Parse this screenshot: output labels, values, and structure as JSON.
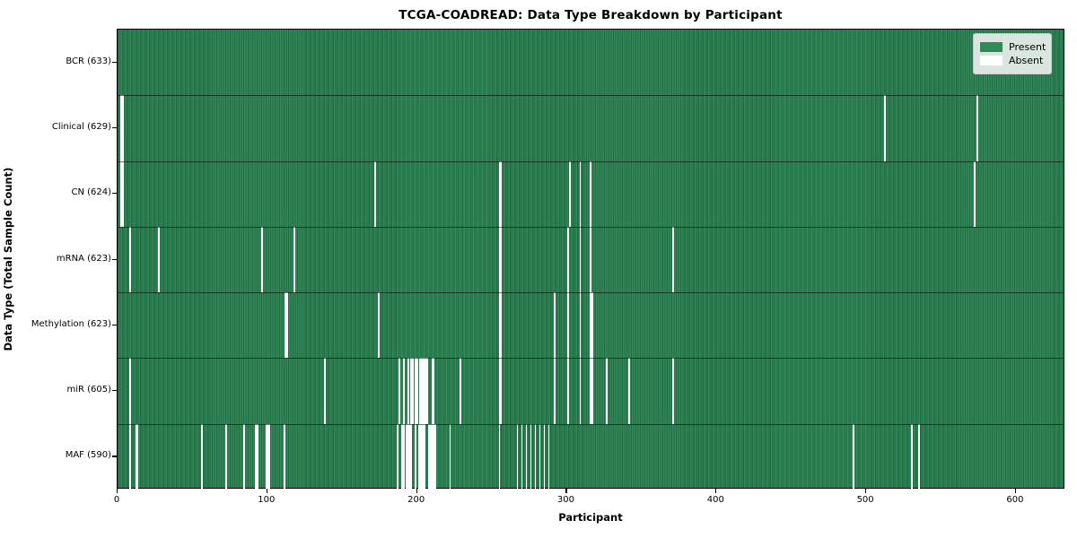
{
  "title": "TCGA-COADREAD: Data Type Breakdown by Participant",
  "axes": {
    "xlabel": "Participant",
    "ylabel": "Data Type (Total Sample Count)"
  },
  "legend": {
    "present_label": "Present",
    "absent_label": "Absent"
  },
  "colors": {
    "present": "#2e8b57",
    "present_dark": "#1e6b42",
    "present_light": "#37895c",
    "absent": "#fdfdfd",
    "separator": "rgba(0,0,0,0.55)"
  },
  "chart_data": {
    "type": "heatmap",
    "title": "TCGA-COADREAD: Data Type Breakdown by Participant",
    "xlabel": "Participant",
    "ylabel": "Data Type (Total Sample Count)",
    "x_range": [
      0,
      633
    ],
    "x_ticks": [
      0,
      100,
      200,
      300,
      400,
      500,
      600
    ],
    "n_participants": 633,
    "legend_position": "upper right",
    "legend_entries": [
      "Present",
      "Absent"
    ],
    "rows": [
      {
        "label": "BCR (633)",
        "data_type": "BCR",
        "present_count": 633,
        "absent_participants": []
      },
      {
        "label": "Clinical (629)",
        "data_type": "Clinical",
        "present_count": 629,
        "absent_participants": [
          2,
          3,
          513,
          575
        ]
      },
      {
        "label": "CN (624)",
        "data_type": "CN",
        "present_count": 624,
        "absent_participants": [
          2,
          3,
          172,
          255,
          256,
          302,
          309,
          316,
          573
        ]
      },
      {
        "label": "mRNA (623)",
        "data_type": "mRNA",
        "present_count": 623,
        "absent_participants": [
          8,
          27,
          96,
          118,
          255,
          256,
          301,
          309,
          316,
          371
        ]
      },
      {
        "label": "Methylation (623)",
        "data_type": "Methylation",
        "present_count": 623,
        "absent_participants": [
          112,
          113,
          174,
          255,
          256,
          292,
          301,
          309,
          316,
          317
        ]
      },
      {
        "label": "miR (605)",
        "data_type": "miR",
        "present_count": 605,
        "absent_participants": [
          8,
          138,
          188,
          191,
          194,
          196,
          197,
          199,
          200,
          202,
          203,
          204,
          205,
          206,
          207,
          210,
          211,
          229,
          255,
          256,
          292,
          301,
          309,
          316,
          317,
          327,
          342,
          371
        ]
      },
      {
        "label": "MAF (590)",
        "data_type": "MAF",
        "present_count": 590,
        "absent_participants": [
          8,
          12,
          13,
          56,
          72,
          84,
          92,
          93,
          99,
          100,
          101,
          111,
          187,
          190,
          191,
          193,
          194,
          195,
          196,
          199,
          201,
          202,
          203,
          204,
          205,
          208,
          209,
          210,
          211,
          212,
          222,
          255,
          267,
          270,
          273,
          276,
          279,
          282,
          285,
          288,
          492,
          531,
          536
        ]
      }
    ]
  }
}
